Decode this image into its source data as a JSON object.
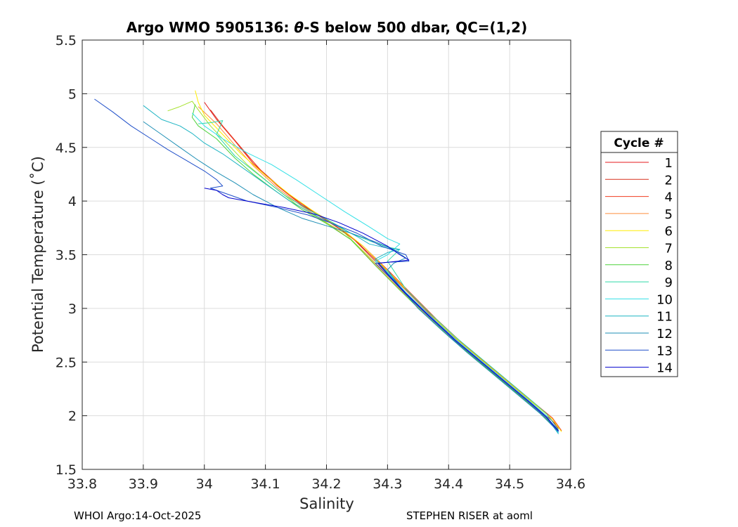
{
  "footer": {
    "left": "WHOI Argo:14-Oct-2025",
    "right": "STEPHEN RISER at aoml"
  },
  "chart_data": {
    "type": "line",
    "title": "Argo WMO 5905136: θ-S below 500 dbar,  QC=(1,2)",
    "title_parts": {
      "prefix": "Argo WMO 5905136: ",
      "theta": "θ",
      "suffix": "-S below 500 dbar,  QC=(1,2)"
    },
    "xlabel": "Salinity",
    "ylabel": "Potential Temperature (˚C)",
    "xlim": [
      33.8,
      34.6
    ],
    "ylim": [
      1.5,
      5.5
    ],
    "xticks": [
      "33.8",
      "33.9",
      "34",
      "34.1",
      "34.2",
      "34.3",
      "34.4",
      "34.5",
      "34.6"
    ],
    "yticks": [
      "1.5",
      "2",
      "2.5",
      "3",
      "3.5",
      "4",
      "4.5",
      "5",
      "5.5"
    ],
    "grid": true,
    "legend": {
      "title": "Cycle #",
      "position": "right"
    },
    "series": [
      {
        "name": "1",
        "color": "#e41a1c",
        "x": [
          34.0,
          34.02,
          34.05,
          34.08,
          34.12,
          34.16,
          34.2,
          34.24,
          34.28,
          34.32,
          34.36,
          34.4,
          34.44,
          34.48,
          34.52,
          34.55,
          34.58
        ],
        "y": [
          4.92,
          4.76,
          4.56,
          4.35,
          4.14,
          3.96,
          3.82,
          3.67,
          3.44,
          3.2,
          2.98,
          2.77,
          2.58,
          2.39,
          2.2,
          2.05,
          1.9
        ]
      },
      {
        "name": "2",
        "color": "#d7301f",
        "x": [
          34.01,
          34.03,
          34.06,
          34.09,
          34.13,
          34.17,
          34.21,
          34.25,
          34.29,
          34.33,
          34.37,
          34.41,
          34.45,
          34.49,
          34.53,
          34.56,
          34.58
        ],
        "y": [
          4.85,
          4.7,
          4.5,
          4.3,
          4.1,
          3.93,
          3.79,
          3.62,
          3.4,
          3.17,
          2.94,
          2.73,
          2.54,
          2.35,
          2.16,
          2.02,
          1.88
        ]
      },
      {
        "name": "4",
        "color": "#f03b20",
        "x": [
          34.02,
          34.04,
          34.07,
          34.1,
          34.14,
          34.18,
          34.22,
          34.26,
          34.3,
          34.34,
          34.38,
          34.42,
          34.46,
          34.5,
          34.54,
          34.57,
          34.585
        ],
        "y": [
          4.76,
          4.63,
          4.43,
          4.24,
          4.05,
          3.9,
          3.76,
          3.58,
          3.36,
          3.13,
          2.9,
          2.69,
          2.5,
          2.31,
          2.12,
          1.98,
          1.86
        ]
      },
      {
        "name": "5",
        "color": "#fd8d3c",
        "x": [
          33.99,
          34.02,
          34.05,
          34.08,
          34.12,
          34.16,
          34.2,
          34.24,
          34.28,
          34.32,
          34.36,
          34.4,
          34.44,
          34.48,
          34.52,
          34.55,
          34.58
        ],
        "y": [
          4.88,
          4.72,
          4.52,
          4.33,
          4.12,
          3.95,
          3.8,
          3.64,
          3.41,
          3.18,
          2.96,
          2.75,
          2.56,
          2.37,
          2.18,
          2.03,
          1.87
        ]
      },
      {
        "name": "6",
        "color": "#ffee00",
        "x": [
          33.985,
          33.99,
          34.0,
          34.03,
          34.06,
          34.1,
          34.14,
          34.18,
          34.22,
          34.26,
          34.3,
          34.34,
          34.38,
          34.42,
          34.46,
          34.5,
          34.54,
          34.57,
          34.585
        ],
        "y": [
          5.03,
          4.92,
          4.8,
          4.62,
          4.44,
          4.24,
          4.06,
          3.9,
          3.76,
          3.58,
          3.35,
          3.12,
          2.89,
          2.68,
          2.49,
          2.3,
          2.11,
          1.97,
          1.85
        ]
      },
      {
        "name": "7",
        "color": "#a6e22e",
        "x": [
          33.94,
          33.96,
          33.98,
          33.99,
          34.01,
          34.04,
          34.07,
          34.11,
          34.15,
          34.19,
          34.23,
          34.27,
          34.31,
          34.35,
          34.39,
          34.43,
          34.47,
          34.51,
          34.55,
          34.58
        ],
        "y": [
          4.84,
          4.88,
          4.93,
          4.85,
          4.7,
          4.52,
          4.34,
          4.15,
          3.97,
          3.83,
          3.7,
          3.48,
          3.25,
          3.02,
          2.8,
          2.6,
          2.41,
          2.22,
          2.03,
          1.86
        ]
      },
      {
        "name": "8",
        "color": "#4dd23a",
        "x": [
          33.985,
          33.98,
          33.99,
          34.02,
          34.05,
          34.08,
          34.12,
          34.16,
          34.2,
          34.24,
          34.28,
          34.32,
          34.36,
          34.4,
          34.44,
          34.48,
          34.52,
          34.55,
          34.58
        ],
        "y": [
          4.9,
          4.78,
          4.7,
          4.58,
          4.4,
          4.25,
          4.08,
          3.92,
          3.79,
          3.64,
          3.4,
          3.17,
          2.95,
          2.74,
          2.55,
          2.36,
          2.17,
          2.02,
          1.86
        ]
      },
      {
        "name": "9",
        "color": "#2fd9a8",
        "x": [
          33.99,
          34.01,
          34.03,
          34.02,
          34.05,
          34.09,
          34.13,
          34.17,
          34.21,
          34.24,
          34.27,
          34.3,
          34.32,
          34.3,
          34.33,
          34.37,
          34.41,
          34.45,
          34.49,
          34.53,
          34.56,
          34.58
        ],
        "y": [
          4.72,
          4.73,
          4.75,
          4.62,
          4.42,
          4.24,
          4.06,
          3.92,
          3.8,
          3.7,
          3.63,
          3.57,
          3.55,
          3.44,
          3.18,
          2.95,
          2.74,
          2.55,
          2.36,
          2.17,
          2.02,
          1.87
        ]
      },
      {
        "name": "10",
        "color": "#33e0e6",
        "x": [
          33.98,
          34.0,
          34.03,
          34.07,
          34.11,
          34.15,
          34.19,
          34.23,
          34.27,
          34.3,
          34.32,
          34.3,
          34.28,
          34.3,
          34.33,
          34.37,
          34.41,
          34.45,
          34.49,
          34.53,
          34.56,
          34.58
        ],
        "y": [
          4.82,
          4.7,
          4.58,
          4.45,
          4.34,
          4.2,
          4.05,
          3.9,
          3.76,
          3.65,
          3.6,
          3.5,
          3.44,
          3.34,
          3.15,
          2.93,
          2.72,
          2.53,
          2.34,
          2.15,
          2.0,
          1.84
        ]
      },
      {
        "name": "11",
        "color": "#1fb5c4",
        "x": [
          33.9,
          33.93,
          33.96,
          33.98,
          34.0,
          34.03,
          34.06,
          34.1,
          34.14,
          34.18,
          34.22,
          34.25,
          34.27,
          34.3,
          34.32,
          34.3,
          34.28,
          34.3,
          34.33,
          34.37,
          34.41,
          34.45,
          34.49,
          34.53,
          34.56,
          34.58
        ],
        "y": [
          4.89,
          4.76,
          4.7,
          4.63,
          4.54,
          4.44,
          4.32,
          4.16,
          4.0,
          3.87,
          3.76,
          3.67,
          3.6,
          3.56,
          3.55,
          3.52,
          3.46,
          3.33,
          3.14,
          2.92,
          2.71,
          2.52,
          2.33,
          2.14,
          1.99,
          1.83
        ]
      },
      {
        "name": "12",
        "color": "#1e8fb5",
        "x": [
          33.9,
          33.93,
          33.96,
          33.99,
          34.02,
          34.05,
          34.08,
          34.12,
          34.16,
          34.2,
          34.24,
          34.28,
          34.31,
          34.33,
          34.31,
          34.3,
          34.32,
          34.35,
          34.39,
          34.43,
          34.47,
          34.51,
          34.55,
          34.58
        ],
        "y": [
          4.74,
          4.62,
          4.5,
          4.38,
          4.27,
          4.17,
          4.06,
          3.94,
          3.84,
          3.77,
          3.7,
          3.62,
          3.55,
          3.47,
          3.42,
          3.36,
          3.2,
          3.0,
          2.79,
          2.59,
          2.4,
          2.21,
          2.02,
          1.85
        ]
      },
      {
        "name": "13",
        "color": "#1f4fc9",
        "x": [
          33.82,
          33.85,
          33.88,
          33.91,
          33.94,
          33.97,
          34.0,
          34.02,
          34.03,
          34.01,
          34.03,
          34.07,
          34.12,
          34.17,
          34.21,
          34.25,
          34.29,
          34.33,
          34.335,
          34.3,
          34.28,
          34.3,
          34.33,
          34.37,
          34.41,
          34.45,
          34.49,
          34.53,
          34.56,
          34.58
        ],
        "y": [
          4.95,
          4.83,
          4.7,
          4.59,
          4.48,
          4.38,
          4.28,
          4.2,
          4.14,
          4.12,
          4.08,
          4.0,
          3.94,
          3.87,
          3.79,
          3.7,
          3.58,
          3.5,
          3.44,
          3.43,
          3.42,
          3.31,
          3.13,
          2.91,
          2.7,
          2.51,
          2.32,
          2.13,
          1.98,
          1.85
        ]
      },
      {
        "name": "14",
        "color": "#0000cd",
        "x": [
          34.0,
          34.02,
          34.03,
          34.04,
          34.08,
          34.13,
          34.18,
          34.22,
          34.26,
          34.3,
          34.32,
          34.335,
          34.3,
          34.285,
          34.3,
          34.33,
          34.37,
          34.41,
          34.45,
          34.49,
          34.53,
          34.56,
          34.58
        ],
        "y": [
          4.12,
          4.1,
          4.06,
          4.03,
          3.99,
          3.94,
          3.88,
          3.8,
          3.7,
          3.58,
          3.5,
          3.45,
          3.43,
          3.42,
          3.32,
          3.14,
          2.92,
          2.71,
          2.52,
          2.33,
          2.14,
          1.99,
          1.86
        ]
      }
    ]
  }
}
